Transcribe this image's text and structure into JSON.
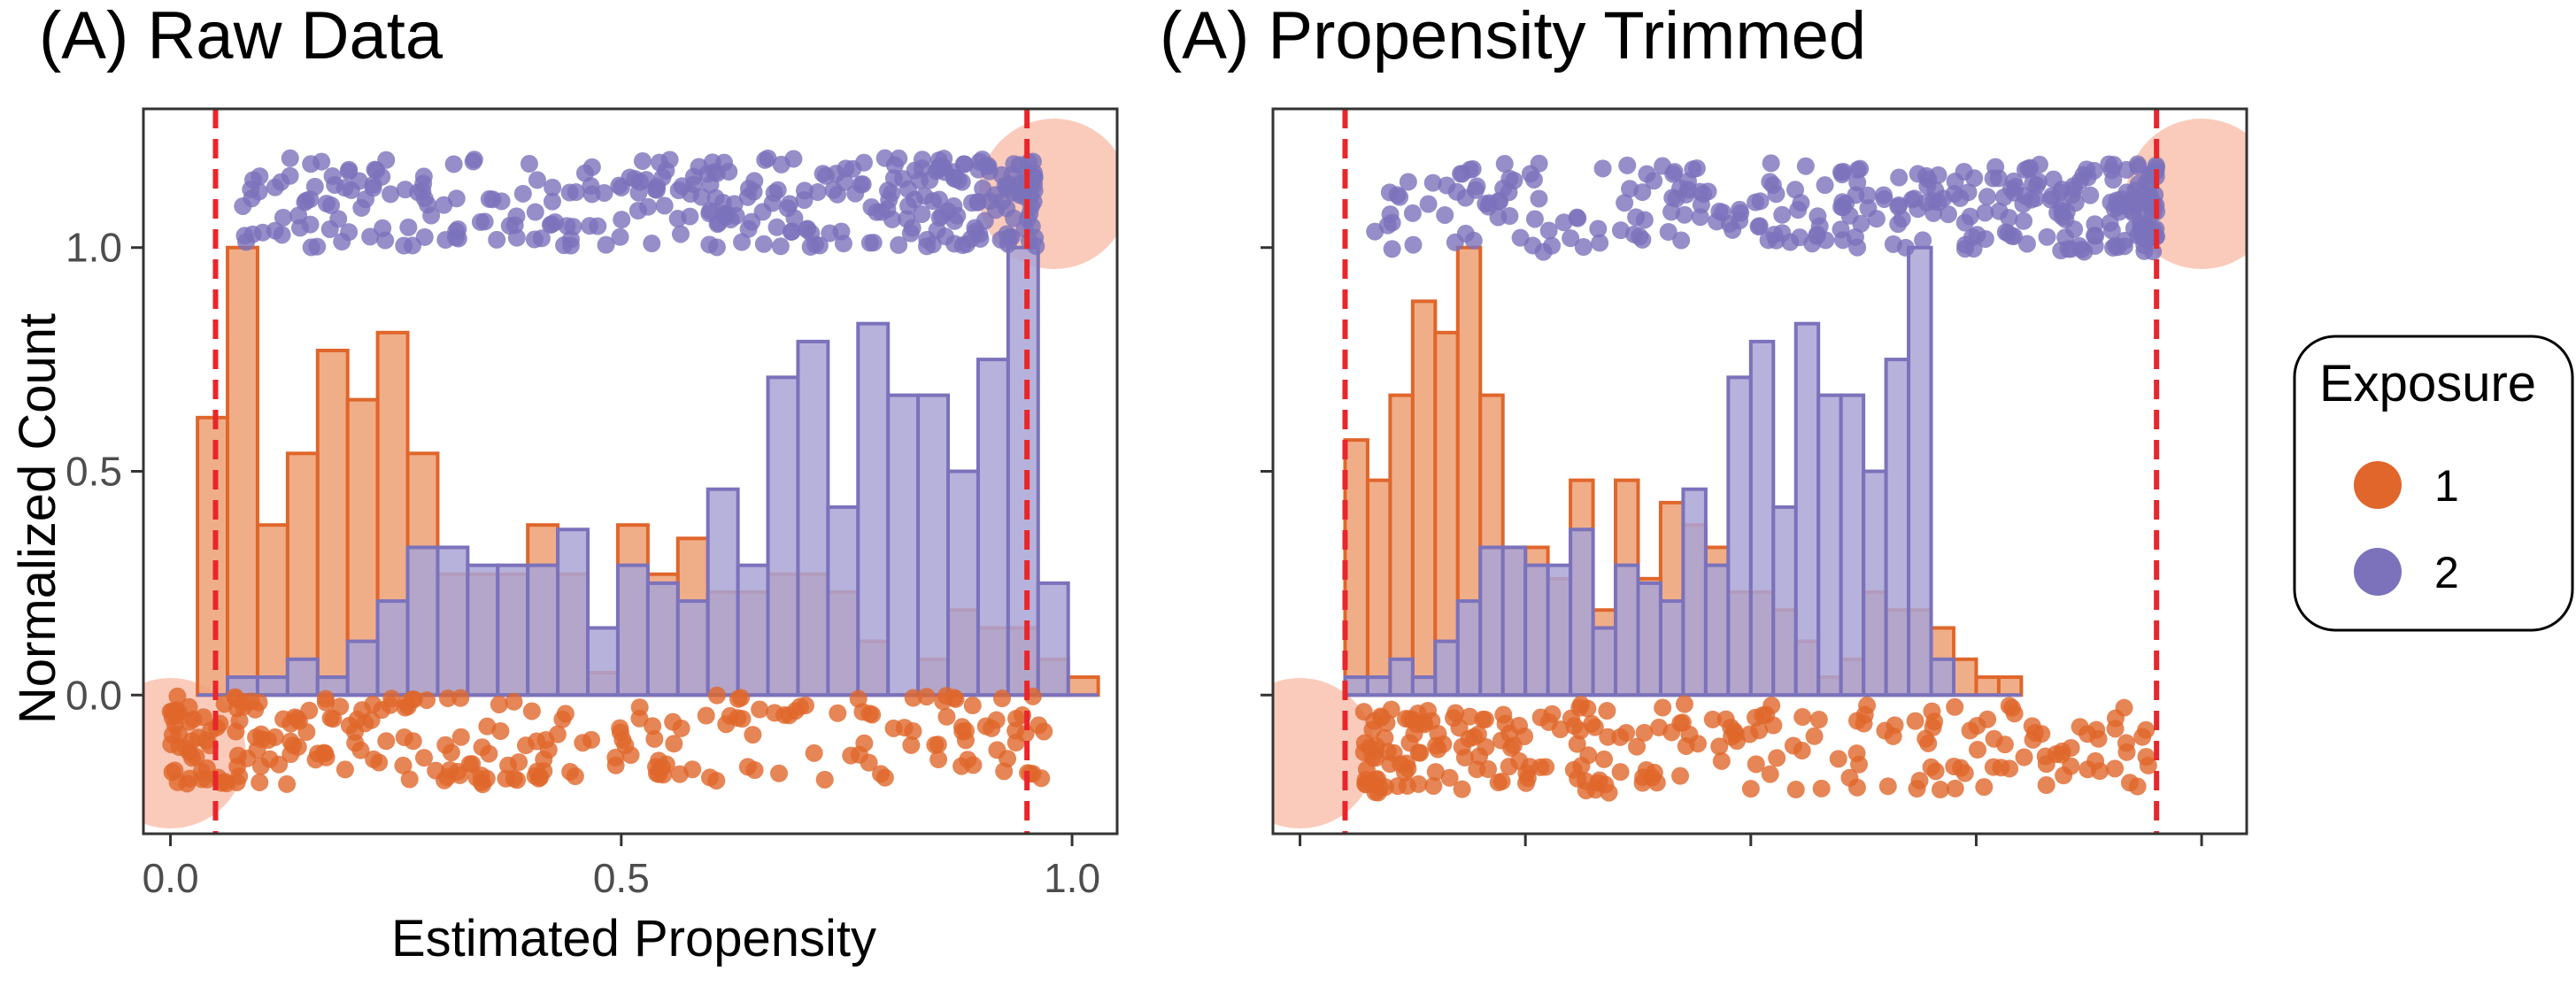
{
  "colors": {
    "exposure_1": "#e0662b",
    "exposure_2": "#7b72bb",
    "exposure_1_fill": "#eda073",
    "exposure_2_fill": "#a9a4d6",
    "cutoff_line": "#e8262b",
    "highlight": "#f7a98e",
    "panel_border": "#333333"
  },
  "legend": {
    "title": "Exposure",
    "items": [
      {
        "label": "1",
        "color": "#e0662b"
      },
      {
        "label": "2",
        "color": "#7b72bb"
      }
    ]
  },
  "chart_data": [
    {
      "type": "histogram+jitter",
      "title": "(A) Raw Data",
      "xlabel": "Estimated Propensity",
      "ylabel": "Normalized Count",
      "xlim": [
        -0.03,
        1.05
      ],
      "ylim": [
        -0.31,
        1.31
      ],
      "xticks": [
        "0.0",
        "0.5",
        "1.0"
      ],
      "yticks": [
        "0.0",
        "0.5",
        "1.0"
      ],
      "cutoffs": [
        0.05,
        0.95
      ],
      "bin_width": 0.0333,
      "bin_start": 0.03,
      "series": [
        {
          "name": "1",
          "values": [
            0.62,
            1.0,
            0.38,
            0.54,
            0.77,
            0.66,
            0.81,
            0.54,
            0.27,
            0.27,
            0.27,
            0.38,
            0.27,
            0.05,
            0.38,
            0.27,
            0.35,
            0.23,
            0.23,
            0.27,
            0.27,
            0.23,
            0.12,
            0.0,
            0.08,
            0.19,
            0.15,
            0.15,
            0.08,
            0.04
          ]
        },
        {
          "name": "2",
          "values": [
            0.0,
            0.04,
            0.04,
            0.08,
            0.04,
            0.12,
            0.21,
            0.33,
            0.33,
            0.29,
            0.29,
            0.29,
            0.37,
            0.15,
            0.29,
            0.25,
            0.21,
            0.46,
            0.29,
            0.71,
            0.79,
            0.42,
            0.83,
            0.67,
            0.67,
            0.5,
            0.75,
            1.0,
            0.25,
            0.0
          ]
        }
      ],
      "jitter": [
        {
          "name": "1",
          "y_center": -0.1,
          "y_spread": 0.1,
          "count": 260,
          "x_range": [
            0.0,
            0.97
          ]
        },
        {
          "name": "2",
          "y_center": 1.1,
          "y_spread": 0.1,
          "count": 330,
          "x_range": [
            0.08,
            0.96
          ]
        }
      ],
      "highlights": [
        {
          "x": 0.0,
          "y": -0.13
        },
        {
          "x": 0.98,
          "y": 1.12
        }
      ]
    },
    {
      "type": "histogram+jitter",
      "title": "(A) Propensity Trimmed",
      "xlabel": "",
      "ylabel": "",
      "xlim": [
        -0.03,
        1.05
      ],
      "ylim": [
        -0.31,
        1.31
      ],
      "xticks": [
        "",
        "",
        "",
        "",
        ""
      ],
      "yticks": [
        "",
        "",
        ""
      ],
      "cutoffs": [
        0.05,
        0.95
      ],
      "bin_width": 0.025,
      "bin_start": 0.05,
      "series": [
        {
          "name": "1",
          "values": [
            0.57,
            0.48,
            0.67,
            0.88,
            0.81,
            1.0,
            0.67,
            0.33,
            0.33,
            0.26,
            0.48,
            0.19,
            0.48,
            0.26,
            0.43,
            0.38,
            0.33,
            0.23,
            0.23,
            0.19,
            0.12,
            0.04,
            0.08,
            0.23,
            0.19,
            0.19,
            0.15,
            0.08,
            0.04,
            0.04
          ]
        },
        {
          "name": "2",
          "values": [
            0.04,
            0.04,
            0.08,
            0.04,
            0.12,
            0.21,
            0.33,
            0.33,
            0.29,
            0.29,
            0.37,
            0.15,
            0.29,
            0.25,
            0.21,
            0.46,
            0.29,
            0.71,
            0.79,
            0.42,
            0.83,
            0.67,
            0.67,
            0.5,
            0.75,
            1.0,
            0.08,
            0.0,
            0.0,
            0.0
          ]
        }
      ],
      "jitter": [
        {
          "name": "1",
          "y_center": -0.12,
          "y_spread": 0.1,
          "count": 240,
          "x_range": [
            0.07,
            0.96
          ]
        },
        {
          "name": "2",
          "y_center": 1.09,
          "y_spread": 0.1,
          "count": 310,
          "x_range": [
            0.08,
            0.95
          ]
        }
      ],
      "highlights": [
        {
          "x": 0.0,
          "y": -0.13
        },
        {
          "x": 1.0,
          "y": 1.12
        }
      ]
    }
  ]
}
